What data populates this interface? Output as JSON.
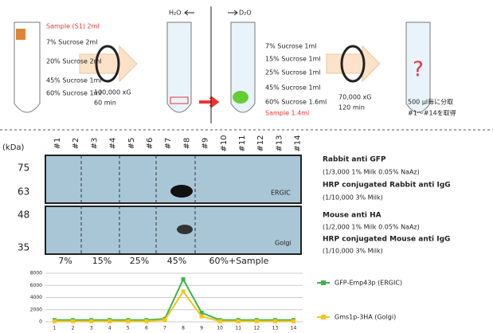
{
  "protocol": {
    "left_tube": [
      "Sample (S1) 2ml",
      "7% Sucrose 2ml",
      "20% Sucrose 2ml",
      "45% Sucrose 1ml",
      "60% Sucrose 1ml"
    ],
    "spin1": [
      "100,000 xG",
      "60 min"
    ],
    "h2o": "H₂O",
    "d2o": "D₂O",
    "mid_tube": [
      "7% Sucrose 1ml",
      "15% Sucrose 1ml",
      "25% Sucrose 1ml",
      "45% Sucrose 1ml",
      "60% Sucrose 1.6ml",
      "Sample 1.4ml"
    ],
    "spin2": [
      "70,000 xG",
      "120 min"
    ],
    "fraction": [
      "500 µl毎に分取",
      "#1〜#14を取得"
    ]
  },
  "blot": {
    "unit": "(kDa)",
    "lanes": [
      "#1",
      "#2",
      "#3",
      "#4",
      "#5",
      "#6",
      "#7",
      "#8",
      "#9",
      "#10",
      "#11",
      "#12",
      "#13",
      "#14"
    ],
    "markers": [
      "75",
      "63",
      "48",
      "35"
    ],
    "panels": [
      "ERGIC",
      "Golgi"
    ],
    "fractions": [
      "7%",
      "15%",
      "25%",
      "45%",
      "60%+Sample"
    ],
    "antibodies": [
      "Rabbit anti GFP",
      "(1/3,000  1% Milk  0.05% NaAz)",
      "HRP conjugated Rabbit anti IgG",
      "(1/10,000  3% Milk)",
      "Mouse anti HA",
      "(1/2,000  1% Milk  0.05% NaAz)",
      "HRP conjugated Mouse anti IgG",
      "(1/10,000  3% Milk)"
    ]
  },
  "chart_data": {
    "type": "line",
    "x": [
      1,
      2,
      3,
      4,
      5,
      6,
      7,
      8,
      9,
      10,
      11,
      12,
      13,
      14
    ],
    "xlim": [
      0.5,
      14.5
    ],
    "xticks": [
      1,
      2,
      3,
      4,
      5,
      6,
      7,
      8,
      9,
      10,
      11,
      12,
      13,
      14
    ],
    "ylim": [
      0,
      8000
    ],
    "yticks": [
      0,
      2000,
      4000,
      6000,
      8000
    ],
    "grid": true,
    "series": [
      {
        "name": "GFP-Emp43p (ERGIC)",
        "color": "#3cb44b",
        "values": [
          300,
          300,
          300,
          300,
          300,
          300,
          500,
          7000,
          1500,
          300,
          300,
          300,
          300,
          300
        ]
      },
      {
        "name": "Gms1p-3HA (Golgi)",
        "color": "#f5c518",
        "values": [
          100,
          100,
          100,
          100,
          100,
          100,
          300,
          5000,
          900,
          100,
          100,
          100,
          100,
          100
        ]
      }
    ]
  }
}
